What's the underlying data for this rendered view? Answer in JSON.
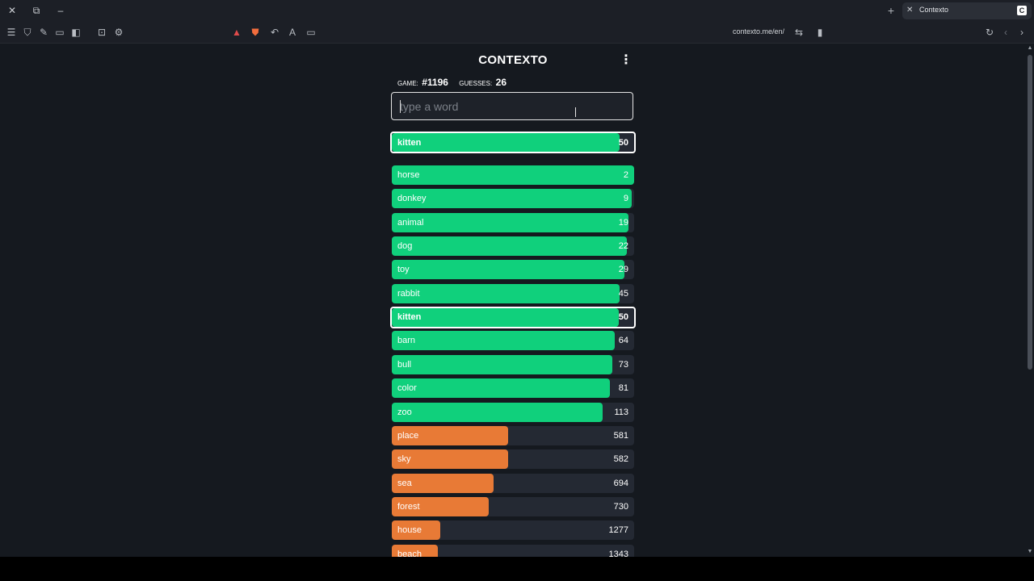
{
  "browser": {
    "tab_title": "Contexto",
    "tab_favicon": "C",
    "url": "contexto.me/en/"
  },
  "game": {
    "title": "CONTEXTO",
    "game_label": "GAME:",
    "game_number": "#1196",
    "guesses_label": "GUESSES:",
    "guesses_count": "26",
    "input_placeholder": "type a word"
  },
  "last_guess": {
    "word": "kitten",
    "distance": 50,
    "color": "#10d07c"
  },
  "guesses": [
    {
      "word": "horse",
      "distance": 2,
      "color": "#10d07c",
      "fill": 1.0
    },
    {
      "word": "donkey",
      "distance": 9,
      "color": "#10d07c",
      "fill": 0.99
    },
    {
      "word": "animal",
      "distance": 19,
      "color": "#10d07c",
      "fill": 0.975
    },
    {
      "word": "dog",
      "distance": 22,
      "color": "#10d07c",
      "fill": 0.97
    },
    {
      "word": "toy",
      "distance": 29,
      "color": "#10d07c",
      "fill": 0.96
    },
    {
      "word": "rabbit",
      "distance": 45,
      "color": "#10d07c",
      "fill": 0.94
    },
    {
      "word": "kitten",
      "distance": 50,
      "color": "#10d07c",
      "fill": 0.935,
      "selected": true
    },
    {
      "word": "barn",
      "distance": 64,
      "color": "#10d07c",
      "fill": 0.92
    },
    {
      "word": "bull",
      "distance": 73,
      "color": "#10d07c",
      "fill": 0.91
    },
    {
      "word": "color",
      "distance": 81,
      "color": "#10d07c",
      "fill": 0.9
    },
    {
      "word": "zoo",
      "distance": 113,
      "color": "#10d07c",
      "fill": 0.87
    },
    {
      "word": "place",
      "distance": 581,
      "color": "#e87a36",
      "fill": 0.48
    },
    {
      "word": "sky",
      "distance": 582,
      "color": "#e87a36",
      "fill": 0.48
    },
    {
      "word": "sea",
      "distance": 694,
      "color": "#e87a36",
      "fill": 0.42
    },
    {
      "word": "forest",
      "distance": 730,
      "color": "#e87a36",
      "fill": 0.4
    },
    {
      "word": "house",
      "distance": 1277,
      "color": "#e87a36",
      "fill": 0.2
    },
    {
      "word": "beach",
      "distance": 1343,
      "color": "#e87a36",
      "fill": 0.19
    }
  ]
}
